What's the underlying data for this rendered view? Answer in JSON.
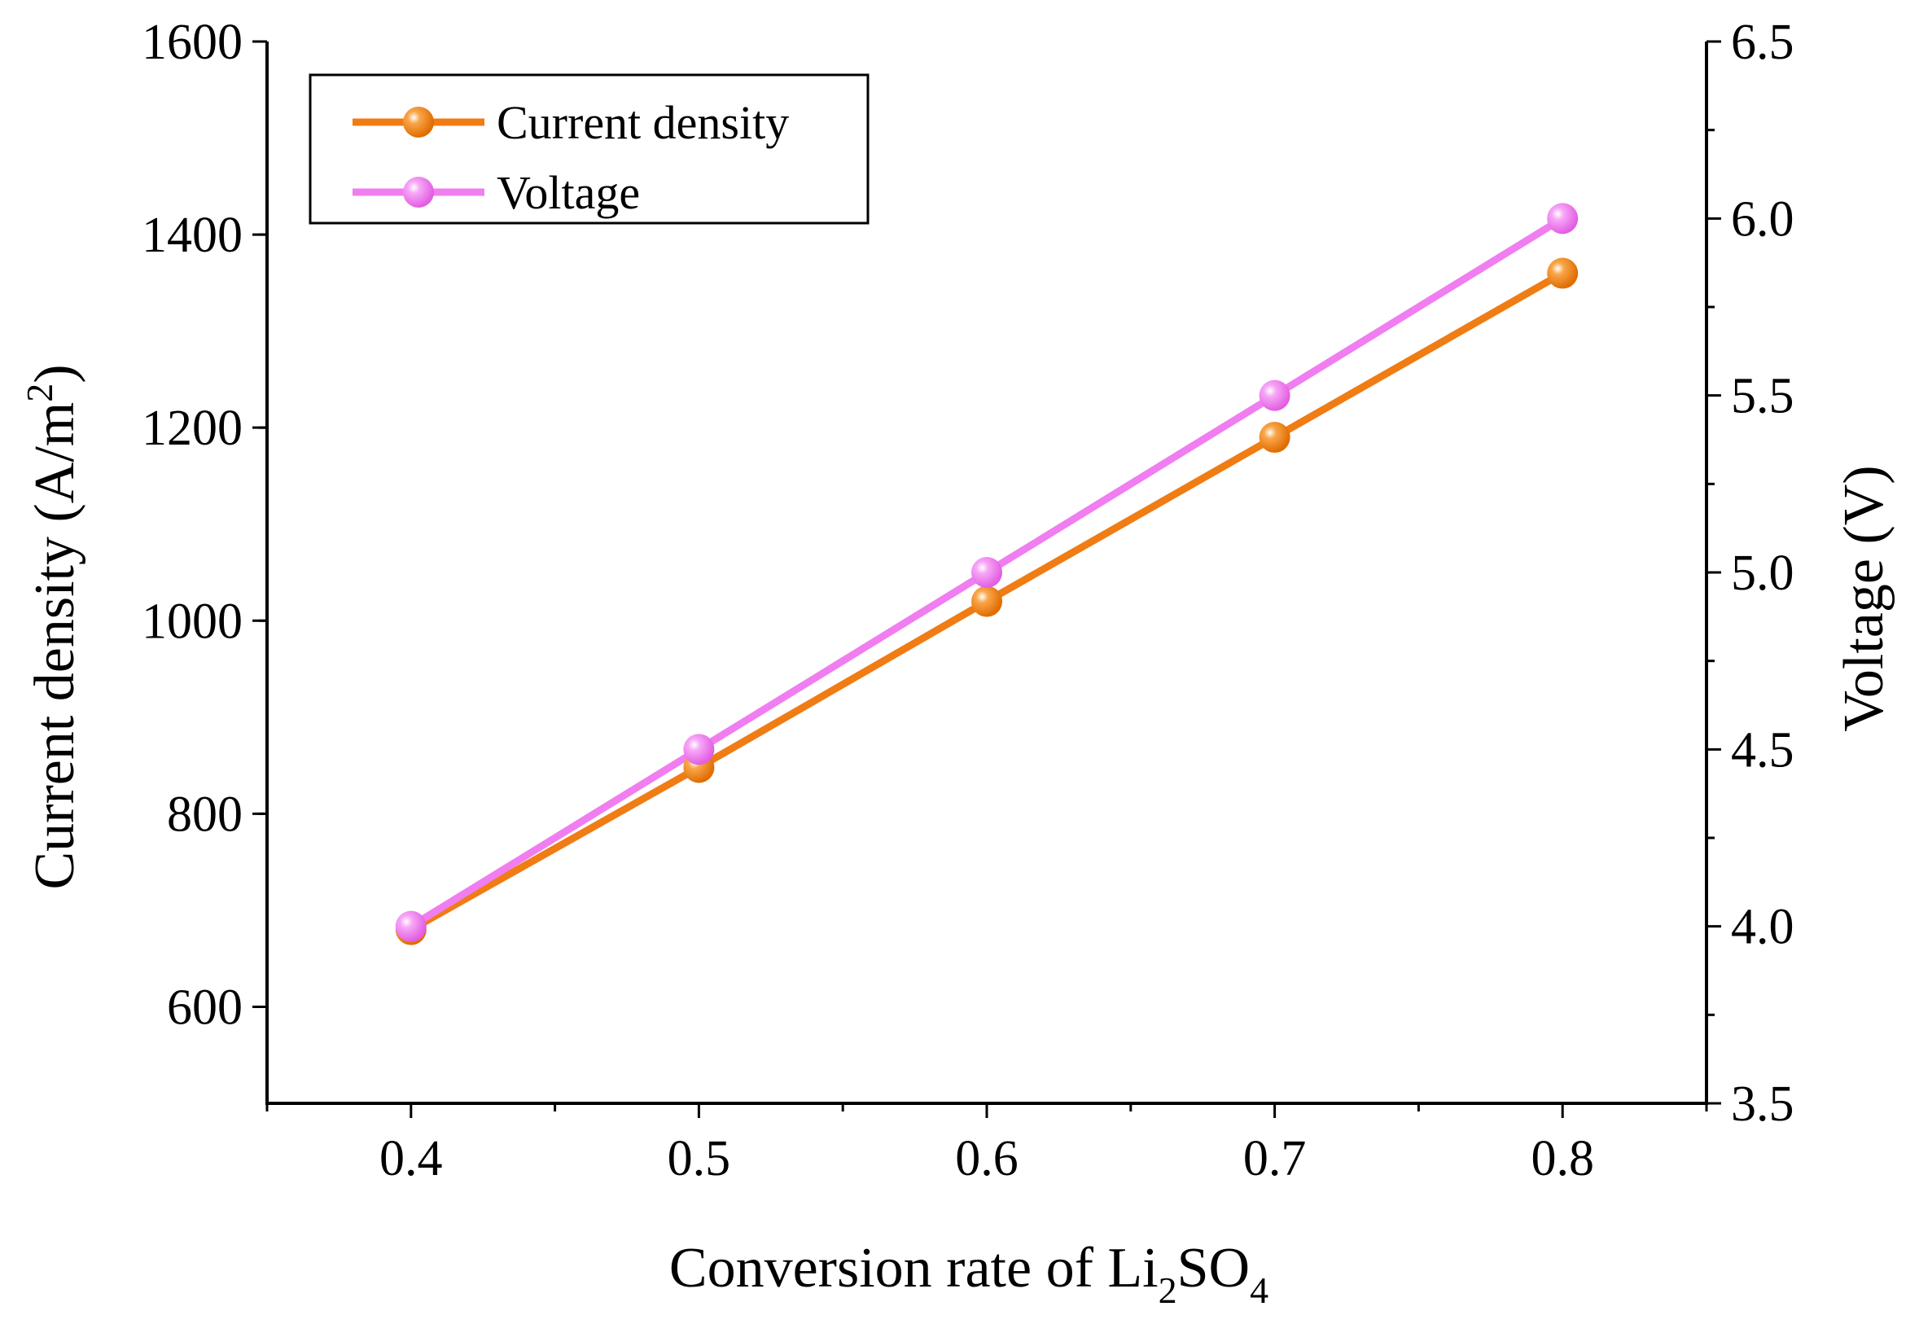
{
  "chart_data": {
    "type": "line",
    "x": [
      0.4,
      0.5,
      0.6,
      0.7,
      0.8
    ],
    "xlim": [
      0.35,
      0.85
    ],
    "xticks": [
      0.4,
      0.5,
      0.6,
      0.7,
      0.8
    ],
    "xtick_labels": [
      "0.4",
      "0.5",
      "0.6",
      "0.7",
      "0.8"
    ],
    "xlabel": {
      "main": "Conversion rate of Li",
      "sub1": "2",
      "mid": "SO",
      "sub2": "4"
    },
    "y_left": {
      "label_main": "Current density (A/m",
      "label_sup": "2",
      "label_end": ")",
      "ylim": [
        500,
        1600
      ],
      "ticks": [
        600,
        800,
        1000,
        1200,
        1400,
        1600
      ],
      "tick_labels": [
        "600",
        "800",
        "1000",
        "1200",
        "1400",
        "1600"
      ]
    },
    "y_right": {
      "label": "Voltage (V)",
      "ylim": [
        3.5,
        6.5
      ],
      "ticks": [
        3.5,
        4.0,
        4.5,
        5.0,
        5.5,
        6.0,
        6.5
      ],
      "tick_labels": [
        "3.5",
        "4.0",
        "4.5",
        "5.0",
        "5.5",
        "6.0",
        "6.5"
      ]
    },
    "series": [
      {
        "name": "Current density",
        "axis": "left",
        "color": "#f07c14",
        "values": [
          680,
          848,
          1020,
          1190,
          1360
        ]
      },
      {
        "name": "Voltage",
        "axis": "right",
        "color": "#f07ef0",
        "values": [
          4.0,
          4.5,
          5.0,
          5.5,
          6.0
        ]
      }
    ],
    "legend": {
      "position": "top-left",
      "items": [
        "Current density",
        "Voltage"
      ]
    }
  }
}
